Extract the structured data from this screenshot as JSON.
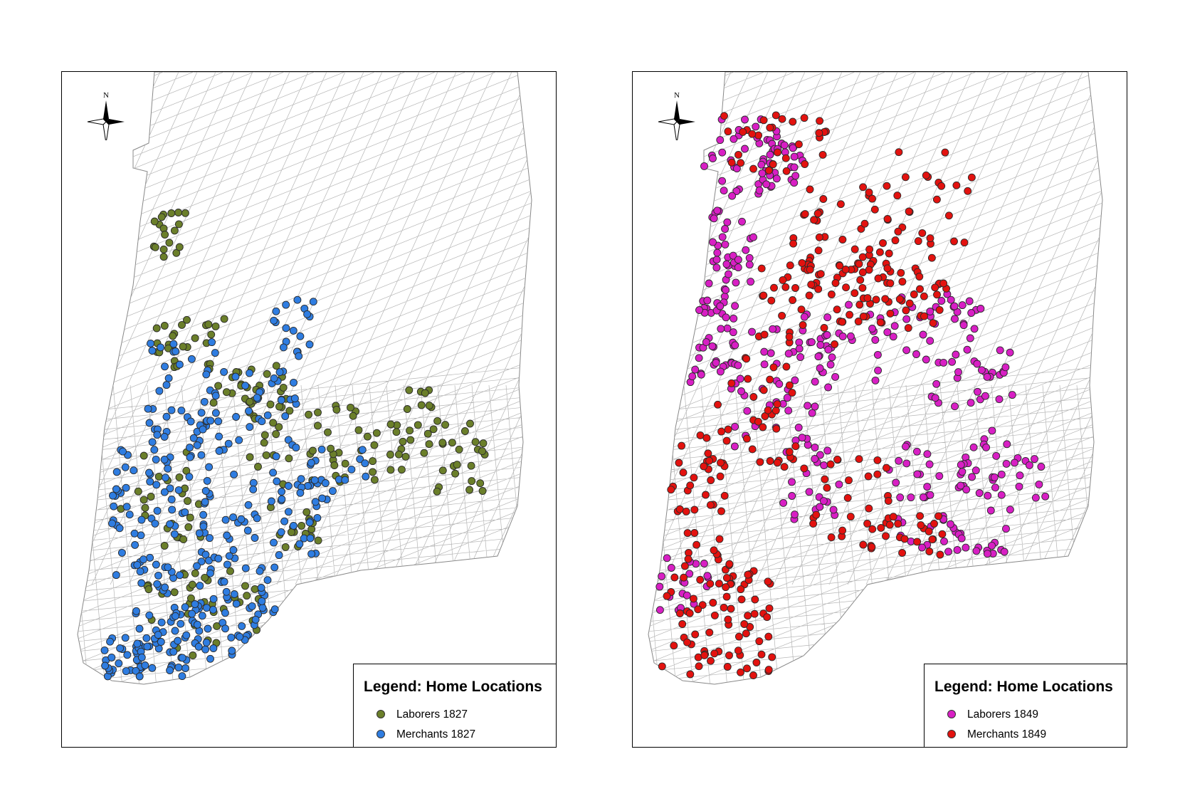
{
  "maps": [
    {
      "id": "left",
      "north_label": "N",
      "legend": {
        "title": "Legend: Home Locations",
        "items": [
          {
            "label": "Laborers 1827",
            "color": "#6b7f2a"
          },
          {
            "label": "Merchants 1827",
            "color": "#2f7de1"
          }
        ]
      }
    },
    {
      "id": "right",
      "north_label": "N",
      "legend": {
        "title": "Legend: Home Locations",
        "items": [
          {
            "label": "Laborers 1849",
            "color": "#d81fc4"
          },
          {
            "label": "Merchants 1849",
            "color": "#e3120f"
          }
        ]
      }
    }
  ],
  "colors": {
    "street_lines": "#b5b5b5",
    "frame": "#000000",
    "point_outline": "#2a2a2a"
  }
}
